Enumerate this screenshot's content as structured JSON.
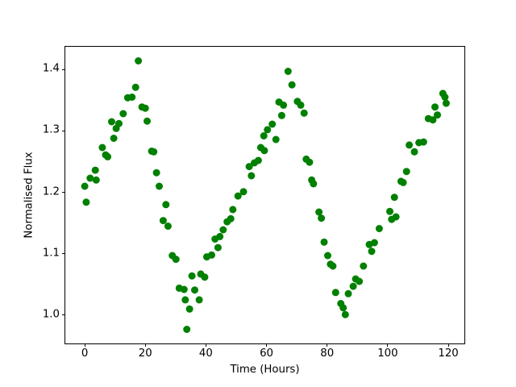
{
  "figure": {
    "background": "#ffffff",
    "title": ""
  },
  "chart_data": {
    "type": "scatter",
    "title": "",
    "xlabel": "Time (Hours)",
    "ylabel": "Normalised Flux",
    "legend": null,
    "grid": false,
    "marker_color": "#008000",
    "marker_radius_px": 4.5,
    "xlim": [
      -6.4,
      125.3
    ],
    "ylim": [
      0.954,
      1.437
    ],
    "xticks": [
      0,
      20,
      40,
      60,
      80,
      100,
      120
    ],
    "yticks": [
      "1.0",
      "1.1",
      "1.2",
      "1.3",
      "1.4"
    ],
    "series": [
      {
        "name": "normalised-flux",
        "points": [
          [
            0.0,
            1.21
          ],
          [
            0.5,
            1.184
          ],
          [
            1.8,
            1.223
          ],
          [
            3.5,
            1.236
          ],
          [
            3.8,
            1.22
          ],
          [
            5.8,
            1.273
          ],
          [
            6.9,
            1.261
          ],
          [
            7.6,
            1.258
          ],
          [
            8.9,
            1.315
          ],
          [
            9.6,
            1.288
          ],
          [
            10.4,
            1.304
          ],
          [
            11.3,
            1.312
          ],
          [
            12.7,
            1.328
          ],
          [
            14.2,
            1.354
          ],
          [
            15.6,
            1.355
          ],
          [
            16.8,
            1.371
          ],
          [
            17.7,
            1.414
          ],
          [
            18.9,
            1.339
          ],
          [
            20.0,
            1.337
          ],
          [
            20.6,
            1.316
          ],
          [
            22.1,
            1.267
          ],
          [
            22.8,
            1.266
          ],
          [
            23.7,
            1.232
          ],
          [
            24.6,
            1.21
          ],
          [
            25.9,
            1.154
          ],
          [
            26.8,
            1.18
          ],
          [
            27.5,
            1.145
          ],
          [
            28.9,
            1.097
          ],
          [
            30.1,
            1.091
          ],
          [
            31.2,
            1.044
          ],
          [
            32.8,
            1.042
          ],
          [
            33.2,
            1.025
          ],
          [
            33.7,
            0.977
          ],
          [
            34.6,
            1.01
          ],
          [
            35.4,
            1.064
          ],
          [
            36.3,
            1.041
          ],
          [
            37.8,
            1.025
          ],
          [
            38.3,
            1.067
          ],
          [
            39.6,
            1.062
          ],
          [
            40.3,
            1.095
          ],
          [
            41.9,
            1.098
          ],
          [
            43.0,
            1.124
          ],
          [
            44.0,
            1.11
          ],
          [
            44.6,
            1.128
          ],
          [
            45.7,
            1.139
          ],
          [
            47.0,
            1.152
          ],
          [
            48.2,
            1.157
          ],
          [
            48.9,
            1.172
          ],
          [
            50.6,
            1.194
          ],
          [
            52.4,
            1.201
          ],
          [
            54.3,
            1.242
          ],
          [
            55.0,
            1.227
          ],
          [
            56.0,
            1.248
          ],
          [
            57.3,
            1.252
          ],
          [
            58.1,
            1.273
          ],
          [
            59.1,
            1.292
          ],
          [
            59.3,
            1.268
          ],
          [
            60.3,
            1.302
          ],
          [
            61.9,
            1.311
          ],
          [
            63.1,
            1.286
          ],
          [
            64.1,
            1.347
          ],
          [
            65.0,
            1.325
          ],
          [
            65.6,
            1.342
          ],
          [
            67.1,
            1.397
          ],
          [
            68.4,
            1.375
          ],
          [
            70.2,
            1.348
          ],
          [
            71.3,
            1.342
          ],
          [
            72.4,
            1.329
          ],
          [
            73.1,
            1.254
          ],
          [
            74.2,
            1.249
          ],
          [
            74.9,
            1.22
          ],
          [
            75.5,
            1.214
          ],
          [
            77.3,
            1.168
          ],
          [
            78.1,
            1.158
          ],
          [
            79.0,
            1.119
          ],
          [
            80.2,
            1.097
          ],
          [
            81.1,
            1.083
          ],
          [
            81.9,
            1.08
          ],
          [
            82.8,
            1.037
          ],
          [
            84.5,
            1.019
          ],
          [
            85.3,
            1.012
          ],
          [
            86.0,
            1.001
          ],
          [
            87.0,
            1.035
          ],
          [
            88.6,
            1.047
          ],
          [
            89.4,
            1.059
          ],
          [
            90.6,
            1.055
          ],
          [
            92.0,
            1.08
          ],
          [
            93.9,
            1.115
          ],
          [
            94.7,
            1.104
          ],
          [
            95.6,
            1.118
          ],
          [
            97.2,
            1.141
          ],
          [
            100.7,
            1.169
          ],
          [
            101.3,
            1.156
          ],
          [
            102.2,
            1.192
          ],
          [
            102.7,
            1.16
          ],
          [
            104.4,
            1.218
          ],
          [
            105.1,
            1.216
          ],
          [
            106.2,
            1.234
          ],
          [
            107.1,
            1.277
          ],
          [
            108.8,
            1.266
          ],
          [
            110.3,
            1.281
          ],
          [
            111.8,
            1.282
          ],
          [
            113.4,
            1.32
          ],
          [
            114.9,
            1.318
          ],
          [
            115.6,
            1.339
          ],
          [
            116.4,
            1.326
          ],
          [
            118.2,
            1.361
          ],
          [
            118.9,
            1.355
          ],
          [
            119.3,
            1.345
          ]
        ]
      }
    ]
  }
}
